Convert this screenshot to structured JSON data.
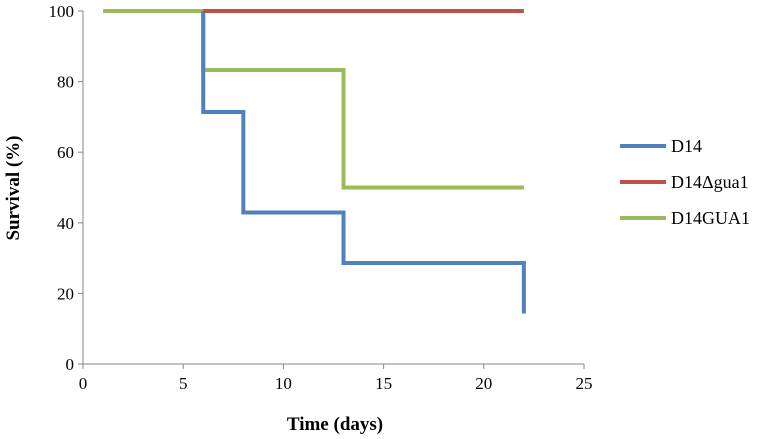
{
  "chart_data": {
    "type": "line",
    "step": true,
    "xlabel": "Time (days)",
    "ylabel": "Survival (%)",
    "xlim": [
      0,
      25
    ],
    "ylim": [
      0,
      100
    ],
    "xticks": [
      0,
      5,
      10,
      15,
      20,
      25
    ],
    "yticks": [
      0,
      20,
      40,
      60,
      80,
      100
    ],
    "grid": false,
    "legend": "right",
    "series": [
      {
        "name": "D14",
        "color": "#4F81BD",
        "points": [
          [
            6,
            100
          ],
          [
            6,
            71.4
          ],
          [
            8,
            71.4
          ],
          [
            8,
            42.9
          ],
          [
            13,
            42.9
          ],
          [
            13,
            28.6
          ],
          [
            22,
            28.6
          ],
          [
            22,
            14.3
          ]
        ]
      },
      {
        "name": "D14Δgua1",
        "color": "#C0504D",
        "points": [
          [
            6,
            100
          ],
          [
            22,
            100
          ]
        ]
      },
      {
        "name": "D14GUA1",
        "color": "#9BBB59",
        "points": [
          [
            1,
            100
          ],
          [
            6,
            100
          ],
          [
            6,
            83.3
          ],
          [
            13,
            83.3
          ],
          [
            13,
            50
          ],
          [
            22,
            50
          ]
        ]
      }
    ]
  }
}
